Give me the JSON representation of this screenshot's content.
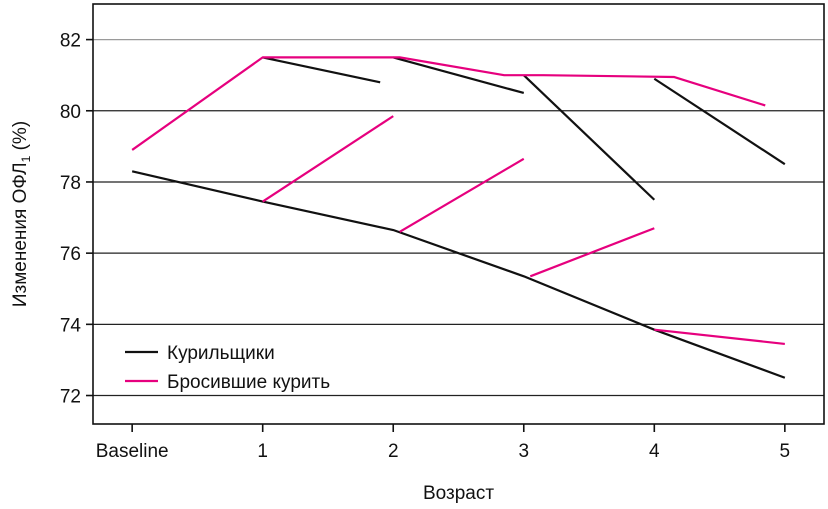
{
  "chart_data": {
    "type": "line",
    "xlabel": "Возраст",
    "ylabel": "Изменения ОФЛ",
    "ylabel_sub": "1",
    "ylabel_suffix": " (%)",
    "ylim": [
      71.2,
      83.0
    ],
    "xlim": [
      -0.3,
      5.3
    ],
    "categories": [
      "Baseline",
      "1",
      "2",
      "3",
      "4",
      "5"
    ],
    "yticks": [
      72,
      74,
      76,
      78,
      80,
      82
    ],
    "grid": true,
    "legend_position": "bottom-left",
    "colors": {
      "smokers": "#111111",
      "quitters": "#e6007e"
    },
    "series": [
      {
        "name": "Курильщики",
        "key": "smokers",
        "color": "#111111",
        "segments": [
          [
            [
              0,
              78.3
            ],
            [
              1,
              77.45
            ],
            [
              2,
              76.65
            ],
            [
              3,
              75.35
            ],
            [
              4,
              73.85
            ],
            [
              5,
              72.5
            ]
          ],
          [
            [
              1,
              81.5
            ],
            [
              1.9,
              80.8
            ]
          ],
          [
            [
              2,
              81.5
            ],
            [
              3,
              80.5
            ]
          ],
          [
            [
              3,
              81.0
            ],
            [
              4,
              77.5
            ]
          ],
          [
            [
              4,
              80.9
            ],
            [
              5,
              78.5
            ]
          ]
        ]
      },
      {
        "name": "Бросившие курить",
        "key": "quitters",
        "color": "#e6007e",
        "segments": [
          [
            [
              0,
              78.9
            ],
            [
              1,
              81.5
            ],
            [
              2.05,
              81.5
            ],
            [
              2.85,
              81.0
            ],
            [
              3.15,
              81.0
            ],
            [
              4.15,
              80.95
            ],
            [
              4.85,
              80.15
            ]
          ],
          [
            [
              1,
              77.45
            ],
            [
              2,
              79.85
            ]
          ],
          [
            [
              2.05,
              76.6
            ],
            [
              3,
              78.65
            ]
          ],
          [
            [
              3.05,
              75.35
            ],
            [
              4,
              76.7
            ]
          ],
          [
            [
              4,
              73.85
            ],
            [
              5,
              73.45
            ]
          ]
        ]
      }
    ]
  }
}
